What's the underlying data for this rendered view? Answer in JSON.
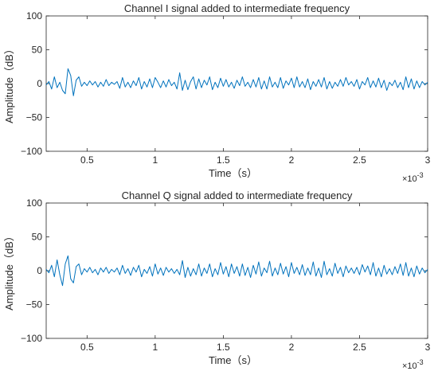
{
  "chart_data": [
    {
      "type": "line",
      "title": "Channel I signal added to intermediate frequency",
      "xlabel": "Time（s）",
      "ylabel": "Amplitude（dB）",
      "xlim": [
        0.0002,
        0.003
      ],
      "ylim": [
        -100,
        100
      ],
      "x_multiplier_label": "×10",
      "x_multiplier_exponent": "-3",
      "x_ticks": [
        {
          "value": 0.0005,
          "label": "0.5"
        },
        {
          "value": 0.001,
          "label": "1"
        },
        {
          "value": 0.0015,
          "label": "1.5"
        },
        {
          "value": 0.002,
          "label": "2"
        },
        {
          "value": 0.0025,
          "label": "2.5"
        },
        {
          "value": 0.003,
          "label": "3"
        }
      ],
      "y_ticks": [
        {
          "value": 100,
          "label": "100"
        },
        {
          "value": 50,
          "label": "50"
        },
        {
          "value": 0,
          "label": "0"
        },
        {
          "value": -50,
          "label": "−50"
        },
        {
          "value": -100,
          "label": "−100"
        }
      ],
      "grid": false,
      "line_color": "#0072bd",
      "series": [
        {
          "x": [
            0.0002,
            0.00022,
            0.00024,
            0.00026,
            0.00028,
            0.0003,
            0.00032,
            0.00034,
            0.00036,
            0.00038,
            0.0004,
            0.00042,
            0.00044,
            0.00046,
            0.00048,
            0.0005,
            0.00052,
            0.00054,
            0.00056,
            0.00058,
            0.0006,
            0.00062,
            0.00064,
            0.00066,
            0.00068,
            0.0007,
            0.00072,
            0.00074,
            0.00076,
            0.00078,
            0.0008,
            0.00082,
            0.00084,
            0.00086,
            0.00088,
            0.0009,
            0.00092,
            0.00094,
            0.00096,
            0.00098,
            0.001,
            0.00102,
            0.00104,
            0.00106,
            0.00108,
            0.0011,
            0.00112,
            0.00114,
            0.00116,
            0.00118,
            0.0012,
            0.00122,
            0.00124,
            0.00126,
            0.00128,
            0.0013,
            0.00132,
            0.00134,
            0.00136,
            0.00138,
            0.0014,
            0.00142,
            0.00144,
            0.00146,
            0.00148,
            0.0015,
            0.00152,
            0.00154,
            0.00156,
            0.00158,
            0.0016,
            0.00162,
            0.00164,
            0.00166,
            0.00168,
            0.0017,
            0.00172,
            0.00174,
            0.00176,
            0.00178,
            0.0018,
            0.00182,
            0.00184,
            0.00186,
            0.00188,
            0.0019,
            0.00192,
            0.00194,
            0.00196,
            0.00198,
            0.002,
            0.00202,
            0.00204,
            0.00206,
            0.00208,
            0.0021,
            0.00212,
            0.00214,
            0.00216,
            0.00218,
            0.0022,
            0.00222,
            0.00224,
            0.00226,
            0.00228,
            0.0023,
            0.00232,
            0.00234,
            0.00236,
            0.00238,
            0.0024,
            0.00242,
            0.00244,
            0.00246,
            0.00248,
            0.0025,
            0.00252,
            0.00254,
            0.00256,
            0.00258,
            0.0026,
            0.00262,
            0.00264,
            0.00266,
            0.00268,
            0.0027,
            0.00272,
            0.00274,
            0.00276,
            0.00278,
            0.0028,
            0.00282,
            0.00284,
            0.00286,
            0.00288,
            0.0029,
            0.00292,
            0.00294,
            0.00296,
            0.00298,
            0.003
          ],
          "y": [
            -2,
            3,
            -8,
            10,
            -6,
            2,
            -10,
            -15,
            22,
            12,
            -18,
            5,
            10,
            -4,
            2,
            -3,
            4,
            -2,
            3,
            -5,
            2,
            -4,
            6,
            -3,
            2,
            -1,
            3,
            -7,
            9,
            -5,
            2,
            -6,
            4,
            -3,
            9,
            -8,
            3,
            -5,
            7,
            -6,
            9,
            2,
            -6,
            4,
            -5,
            6,
            -3,
            2,
            -8,
            16,
            -10,
            5,
            -9,
            3,
            10,
            -8,
            7,
            -6,
            5,
            -2,
            10,
            -9,
            2,
            -6,
            8,
            -4,
            6,
            -5,
            2,
            -7,
            5,
            -3,
            10,
            -4,
            2,
            -6,
            6,
            -5,
            9,
            -8,
            4,
            -8,
            10,
            -5,
            2,
            -6,
            9,
            -7,
            4,
            -2,
            8,
            -6,
            10,
            -5,
            3,
            -6,
            7,
            -9,
            3,
            -4,
            6,
            -5,
            9,
            -8,
            3,
            -7,
            2,
            -4,
            6,
            -4,
            9,
            -2,
            3,
            -4,
            6,
            -8,
            3,
            -2,
            9,
            -6,
            4,
            -5,
            8,
            -6,
            5,
            -10,
            2,
            -3,
            5,
            -6,
            2,
            -9,
            10,
            -6,
            7,
            -8,
            4,
            -6,
            3,
            -2,
            2
          ]
        }
      ]
    },
    {
      "type": "line",
      "title": "Channel Q signal added to intermediate frequency",
      "xlabel": "Time（s）",
      "ylabel": "Amplitude（dB）",
      "xlim": [
        0.0002,
        0.003
      ],
      "ylim": [
        -100,
        100
      ],
      "x_multiplier_label": "×10",
      "x_multiplier_exponent": "-3",
      "x_ticks": [
        {
          "value": 0.0005,
          "label": "0.5"
        },
        {
          "value": 0.001,
          "label": "1"
        },
        {
          "value": 0.0015,
          "label": "1.5"
        },
        {
          "value": 0.002,
          "label": "2"
        },
        {
          "value": 0.0025,
          "label": "2.5"
        },
        {
          "value": 0.003,
          "label": "3"
        }
      ],
      "y_ticks": [
        {
          "value": 100,
          "label": "100"
        },
        {
          "value": 50,
          "label": "50"
        },
        {
          "value": 0,
          "label": "0"
        },
        {
          "value": -50,
          "label": "−50"
        },
        {
          "value": -100,
          "label": "−100"
        }
      ],
      "grid": false,
      "line_color": "#0072bd",
      "series": [
        {
          "x": [
            0.0002,
            0.00022,
            0.00024,
            0.00026,
            0.00028,
            0.0003,
            0.00032,
            0.00034,
            0.00036,
            0.00038,
            0.0004,
            0.00042,
            0.00044,
            0.00046,
            0.00048,
            0.0005,
            0.00052,
            0.00054,
            0.00056,
            0.00058,
            0.0006,
            0.00062,
            0.00064,
            0.00066,
            0.00068,
            0.0007,
            0.00072,
            0.00074,
            0.00076,
            0.00078,
            0.0008,
            0.00082,
            0.00084,
            0.00086,
            0.00088,
            0.0009,
            0.00092,
            0.00094,
            0.00096,
            0.00098,
            0.001,
            0.00102,
            0.00104,
            0.00106,
            0.00108,
            0.0011,
            0.00112,
            0.00114,
            0.00116,
            0.00118,
            0.0012,
            0.00122,
            0.00124,
            0.00126,
            0.00128,
            0.0013,
            0.00132,
            0.00134,
            0.00136,
            0.00138,
            0.0014,
            0.00142,
            0.00144,
            0.00146,
            0.00148,
            0.0015,
            0.00152,
            0.00154,
            0.00156,
            0.00158,
            0.0016,
            0.00162,
            0.00164,
            0.00166,
            0.00168,
            0.0017,
            0.00172,
            0.00174,
            0.00176,
            0.00178,
            0.0018,
            0.00182,
            0.00184,
            0.00186,
            0.00188,
            0.0019,
            0.00192,
            0.00194,
            0.00196,
            0.00198,
            0.002,
            0.00202,
            0.00204,
            0.00206,
            0.00208,
            0.0021,
            0.00212,
            0.00214,
            0.00216,
            0.00218,
            0.0022,
            0.00222,
            0.00224,
            0.00226,
            0.00228,
            0.0023,
            0.00232,
            0.00234,
            0.00236,
            0.00238,
            0.0024,
            0.00242,
            0.00244,
            0.00246,
            0.00248,
            0.0025,
            0.00252,
            0.00254,
            0.00256,
            0.00258,
            0.0026,
            0.00262,
            0.00264,
            0.00266,
            0.00268,
            0.0027,
            0.00272,
            0.00274,
            0.00276,
            0.00278,
            0.0028,
            0.00282,
            0.00284,
            0.00286,
            0.00288,
            0.0029,
            0.00292,
            0.00294,
            0.00296,
            0.00298,
            0.003
          ],
          "y": [
            2,
            -3,
            8,
            -9,
            16,
            -6,
            -22,
            10,
            22,
            -12,
            -18,
            6,
            10,
            -6,
            3,
            -2,
            5,
            -3,
            2,
            -6,
            4,
            -2,
            5,
            -4,
            2,
            -2,
            4,
            -6,
            8,
            -4,
            3,
            -7,
            5,
            -2,
            8,
            -9,
            2,
            -4,
            6,
            -8,
            10,
            -5,
            4,
            -7,
            5,
            -2,
            3,
            -4,
            2,
            -6,
            15,
            -10,
            5,
            -8,
            3,
            -6,
            10,
            -8,
            4,
            -4,
            10,
            -9,
            3,
            -6,
            12,
            -5,
            6,
            -9,
            10,
            -4,
            6,
            -8,
            10,
            -7,
            5,
            -10,
            8,
            -5,
            13,
            -8,
            4,
            -3,
            14,
            -8,
            4,
            -6,
            11,
            -5,
            6,
            -9,
            12,
            -4,
            5,
            -6,
            9,
            -7,
            4,
            -6,
            13,
            -8,
            4,
            -10,
            14,
            -6,
            3,
            -8,
            11,
            -4,
            5,
            -9,
            7,
            -3,
            4,
            -4,
            5,
            -6,
            9,
            -2,
            7,
            -6,
            12,
            -8,
            4,
            -9,
            8,
            -5,
            3,
            -6,
            6,
            -4,
            10,
            -7,
            12,
            -8,
            4,
            -9,
            7,
            -5,
            4,
            -3,
            2
          ]
        }
      ]
    }
  ]
}
